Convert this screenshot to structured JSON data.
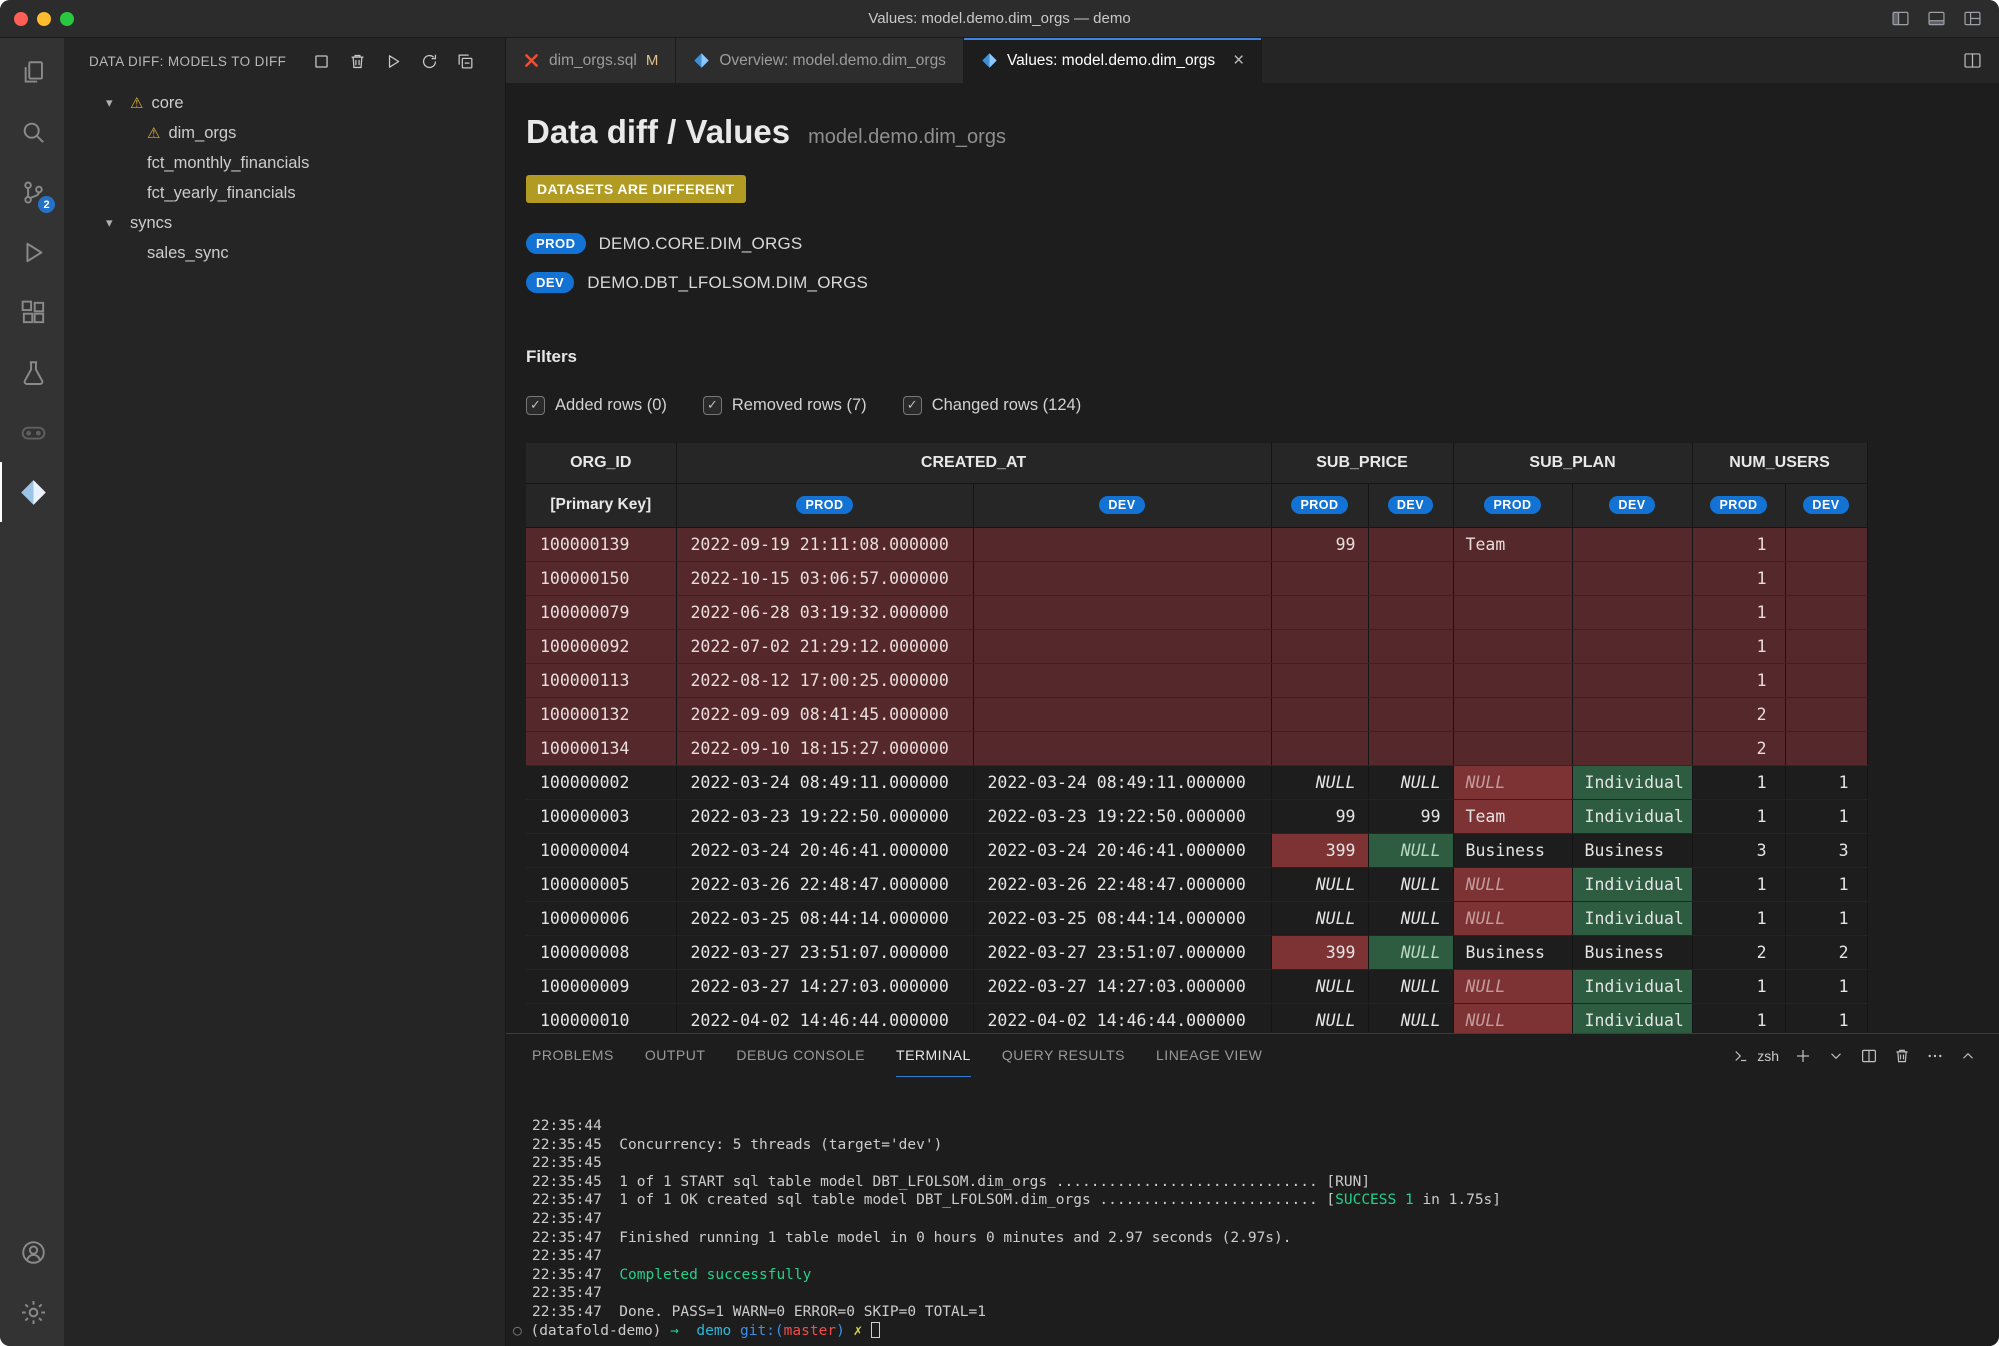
{
  "title_bar": {
    "title": "Values: model.demo.dim_orgs — demo"
  },
  "activity_bar": {
    "source_control_badge": "2"
  },
  "sidebar": {
    "header": "DATA DIFF: MODELS TO DIFF",
    "tree": [
      {
        "label": "core",
        "level": 0,
        "expandable": true,
        "warning": true
      },
      {
        "label": "dim_orgs",
        "level": 1,
        "warning": true
      },
      {
        "label": "fct_monthly_financials",
        "level": 1
      },
      {
        "label": "fct_yearly_financials",
        "level": 1
      },
      {
        "label": "syncs",
        "level": 0,
        "expandable": true
      },
      {
        "label": "sales_sync",
        "level": 1
      }
    ]
  },
  "tabs": [
    {
      "label": "dim_orgs.sql",
      "icon": "dbt",
      "modified": "M",
      "active": false
    },
    {
      "label": "Overview: model.demo.dim_orgs",
      "icon": "datafold",
      "active": false
    },
    {
      "label": "Values: model.demo.dim_orgs",
      "icon": "datafold",
      "active": true
    }
  ],
  "main": {
    "title": "Data diff / Values",
    "subtitle": "model.demo.dim_orgs",
    "status_badge": "DATASETS ARE DIFFERENT",
    "datasets": [
      {
        "env": "PROD",
        "name": "DEMO.CORE.DIM_ORGS"
      },
      {
        "env": "DEV",
        "name": "DEMO.DBT_LFOLSOM.DIM_ORGS"
      }
    ],
    "filters_heading": "Filters",
    "filters": [
      {
        "label": "Added rows (0)",
        "checked": true
      },
      {
        "label": "Removed rows (7)",
        "checked": true
      },
      {
        "label": "Changed rows (124)",
        "checked": true
      }
    ],
    "table": {
      "column_groups": [
        {
          "label": "ORG_ID",
          "span": 1
        },
        {
          "label": "CREATED_AT",
          "span": 2
        },
        {
          "label": "SUB_PRICE",
          "span": 2
        },
        {
          "label": "SUB_PLAN",
          "span": 2
        },
        {
          "label": "NUM_USERS",
          "span": 2
        }
      ],
      "primary_key_label": "[Primary Key]",
      "env_badges": [
        "PROD",
        "DEV",
        "PROD",
        "DEV",
        "PROD",
        "DEV",
        "PROD",
        "DEV"
      ],
      "rows": [
        {
          "type": "removed",
          "cells": [
            "100000139",
            "2022-09-19 21:11:08.000000",
            "",
            "99",
            "",
            "Team",
            "",
            "1",
            ""
          ]
        },
        {
          "type": "removed",
          "cells": [
            "100000150",
            "2022-10-15 03:06:57.000000",
            "",
            "",
            "",
            "",
            "",
            "1",
            ""
          ]
        },
        {
          "type": "removed",
          "cells": [
            "100000079",
            "2022-06-28 03:19:32.000000",
            "",
            "",
            "",
            "",
            "",
            "1",
            ""
          ]
        },
        {
          "type": "removed",
          "cells": [
            "100000092",
            "2022-07-02 21:29:12.000000",
            "",
            "",
            "",
            "",
            "",
            "1",
            ""
          ]
        },
        {
          "type": "removed",
          "cells": [
            "100000113",
            "2022-08-12 17:00:25.000000",
            "",
            "",
            "",
            "",
            "",
            "1",
            ""
          ]
        },
        {
          "type": "removed",
          "cells": [
            "100000132",
            "2022-09-09 08:41:45.000000",
            "",
            "",
            "",
            "",
            "",
            "2",
            ""
          ]
        },
        {
          "type": "removed",
          "cells": [
            "100000134",
            "2022-09-10 18:15:27.000000",
            "",
            "",
            "",
            "",
            "",
            "2",
            ""
          ]
        },
        {
          "type": "changed",
          "cells": [
            "100000002",
            "2022-03-24 08:49:11.000000",
            "2022-03-24 08:49:11.000000",
            {
              "v": "NULL",
              "n": 1
            },
            {
              "v": "NULL",
              "n": 1
            },
            {
              "v": "NULL",
              "n": 1,
              "h": "red"
            },
            {
              "v": "Individual",
              "h": "green"
            },
            "1",
            "1"
          ]
        },
        {
          "type": "changed",
          "cells": [
            "100000003",
            "2022-03-23 19:22:50.000000",
            "2022-03-23 19:22:50.000000",
            "99",
            "99",
            {
              "v": "Team",
              "h": "red"
            },
            {
              "v": "Individual",
              "h": "green"
            },
            "1",
            "1"
          ]
        },
        {
          "type": "changed",
          "cells": [
            "100000004",
            "2022-03-24 20:46:41.000000",
            "2022-03-24 20:46:41.000000",
            {
              "v": "399",
              "h": "red"
            },
            {
              "v": "NULL",
              "n": 1,
              "h": "green"
            },
            "Business",
            "Business",
            "3",
            "3"
          ]
        },
        {
          "type": "changed",
          "cells": [
            "100000005",
            "2022-03-26 22:48:47.000000",
            "2022-03-26 22:48:47.000000",
            {
              "v": "NULL",
              "n": 1
            },
            {
              "v": "NULL",
              "n": 1
            },
            {
              "v": "NULL",
              "n": 1,
              "h": "red"
            },
            {
              "v": "Individual",
              "h": "green"
            },
            "1",
            "1"
          ]
        },
        {
          "type": "changed",
          "cells": [
            "100000006",
            "2022-03-25 08:44:14.000000",
            "2022-03-25 08:44:14.000000",
            {
              "v": "NULL",
              "n": 1
            },
            {
              "v": "NULL",
              "n": 1
            },
            {
              "v": "NULL",
              "n": 1,
              "h": "red"
            },
            {
              "v": "Individual",
              "h": "green"
            },
            "1",
            "1"
          ]
        },
        {
          "type": "changed",
          "cells": [
            "100000008",
            "2022-03-27 23:51:07.000000",
            "2022-03-27 23:51:07.000000",
            {
              "v": "399",
              "h": "red"
            },
            {
              "v": "NULL",
              "n": 1,
              "h": "green"
            },
            "Business",
            "Business",
            "2",
            "2"
          ]
        },
        {
          "type": "changed",
          "cells": [
            "100000009",
            "2022-03-27 14:27:03.000000",
            "2022-03-27 14:27:03.000000",
            {
              "v": "NULL",
              "n": 1
            },
            {
              "v": "NULL",
              "n": 1
            },
            {
              "v": "NULL",
              "n": 1,
              "h": "red"
            },
            {
              "v": "Individual",
              "h": "green"
            },
            "1",
            "1"
          ]
        },
        {
          "type": "changed",
          "cells": [
            "100000010",
            "2022-04-02 14:46:44.000000",
            "2022-04-02 14:46:44.000000",
            {
              "v": "NULL",
              "n": 1
            },
            {
              "v": "NULL",
              "n": 1
            },
            {
              "v": "NULL",
              "n": 1,
              "h": "red"
            },
            {
              "v": "Individual",
              "h": "green"
            },
            "1",
            "1"
          ]
        }
      ]
    }
  },
  "panel": {
    "tabs": [
      "PROBLEMS",
      "OUTPUT",
      "DEBUG CONSOLE",
      "TERMINAL",
      "QUERY RESULTS",
      "LINEAGE VIEW"
    ],
    "active_tab": "TERMINAL",
    "shell_label": "zsh",
    "terminal_lines": [
      [
        {
          "t": "22:35:44"
        }
      ],
      [
        {
          "t": "22:35:45  Concurrency: 5 threads (target='dev')"
        }
      ],
      [
        {
          "t": "22:35:45"
        }
      ],
      [
        {
          "t": "22:35:45  1 of 1 START sql table model DBT_LFOLSOM.dim_orgs .............................. [RUN]"
        }
      ],
      [
        {
          "t": "22:35:47  1 of 1 OK created sql table model DBT_LFOLSOM.dim_orgs ......................... ["
        },
        {
          "t": "SUCCESS 1",
          "c": "green"
        },
        {
          "t": " in 1.75s]"
        }
      ],
      [
        {
          "t": "22:35:47"
        }
      ],
      [
        {
          "t": "22:35:47  Finished running 1 table model in 0 hours 0 minutes and 2.97 seconds (2.97s)."
        }
      ],
      [
        {
          "t": "22:35:47"
        }
      ],
      [
        {
          "t": "22:35:47  "
        },
        {
          "t": "Completed successfully",
          "c": "green"
        }
      ],
      [
        {
          "t": "22:35:47"
        }
      ],
      [
        {
          "t": "22:35:47  Done. PASS=1 WARN=0 ERROR=0 SKIP=0 TOTAL=1"
        }
      ],
      [
        {
          "t": "○ ",
          "c": "deco"
        },
        {
          "t": "(datafold-demo) "
        },
        {
          "t": "→",
          "c": "green"
        },
        {
          "t": "  "
        },
        {
          "t": "demo",
          "c": "cyan"
        },
        {
          "t": " "
        },
        {
          "t": "git:(",
          "c": "blue"
        },
        {
          "t": "master",
          "c": "red"
        },
        {
          "t": ")",
          "c": "blue"
        },
        {
          "t": " "
        },
        {
          "t": "✗",
          "c": "yellow"
        },
        {
          "t": " "
        },
        {
          "cursor": true
        }
      ]
    ]
  }
}
